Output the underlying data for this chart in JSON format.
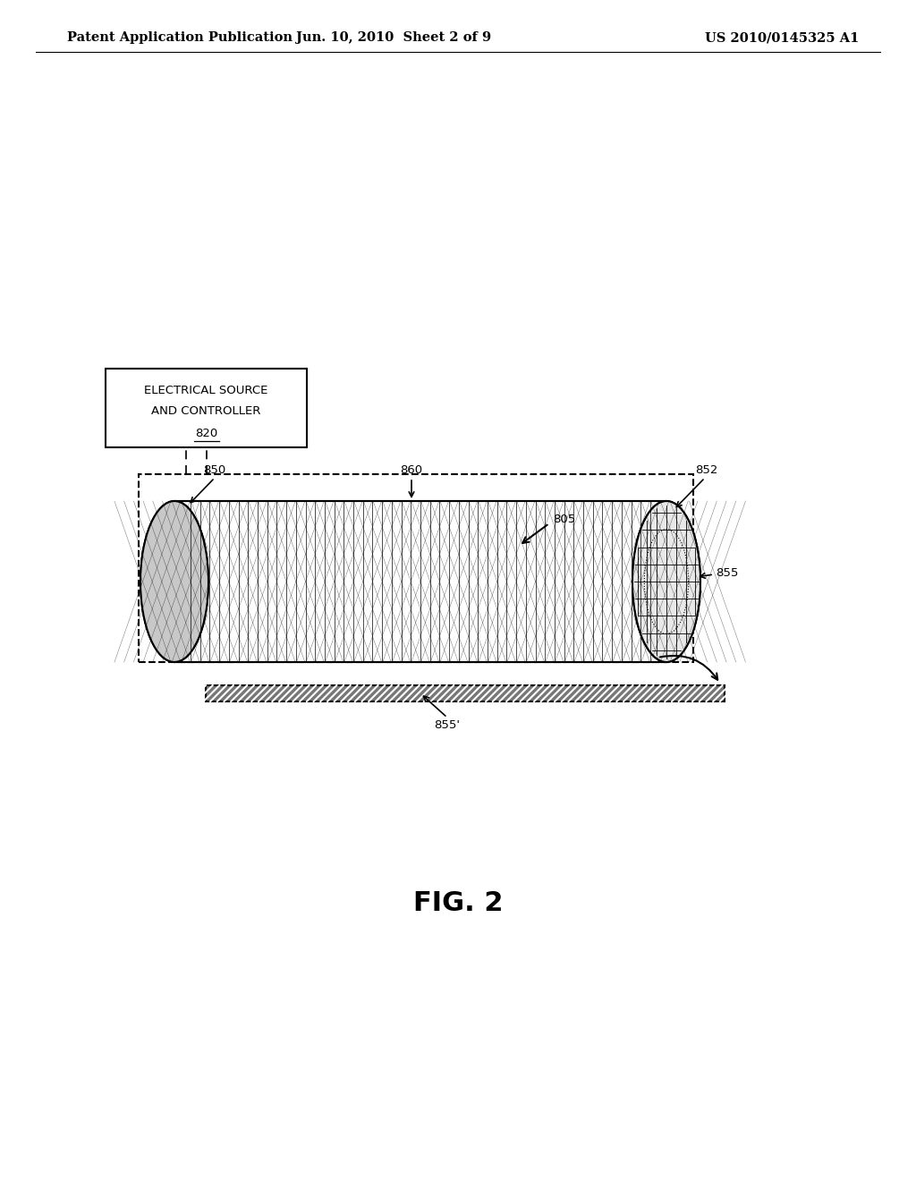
{
  "bg_color": "#ffffff",
  "line_color": "#000000",
  "header_left": "Patent Application Publication",
  "header_center": "Jun. 10, 2010  Sheet 2 of 9",
  "header_right": "US 2010/0145325 A1",
  "fig_label": "FIG. 2",
  "box_label_line1": "ELECTRICAL SOURCE",
  "box_label_line2": "AND CONTROLLER",
  "box_label_num": "820",
  "label_805": "805",
  "label_850": "850",
  "label_852": "852",
  "label_855": "855",
  "label_855p": "855'",
  "label_860": "860"
}
